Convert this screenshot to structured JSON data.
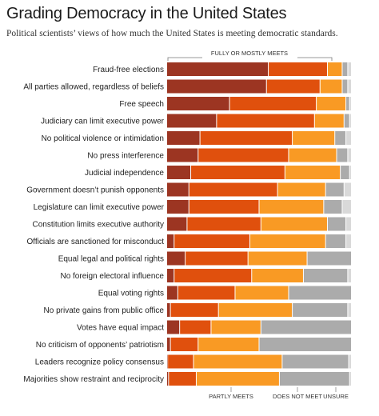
{
  "title": "Grading Democracy in the United States",
  "subtitle": "Political scientists’ views of how much the United States is meeting democratic standards.",
  "chart_data": {
    "type": "bar",
    "orientation": "horizontal",
    "stacked": true,
    "normalized": true,
    "header_label": "FULLY OR MOSTLY MEETS",
    "footer_labels": [
      "PARTLY MEETS",
      "DOES NOT MEET",
      "UNSURE"
    ],
    "colors": [
      "#9c3522",
      "#e0500d",
      "#f99a24",
      "#ababab",
      "#d9d9d9"
    ],
    "categories": [
      "Fraud-free elections",
      "All parties allowed, regardless of beliefs",
      "Free speech",
      "Judiciary can limit executive power",
      "No political violence or intimidation",
      "No press interference",
      "Judicial independence",
      "Government doesn’t punish opponents",
      "Legislature can limit executive power",
      "Constitution limits executive authority",
      "Officials are sanctioned for misconduct",
      "Equal legal and political rights",
      "No foreign electoral influence",
      "Equal voting rights",
      "No private gains from public office",
      "Votes have equal impact",
      "No criticism of opponents’ patriotism",
      "Leaders recognize policy consensus",
      "Majorities show restraint and reciprocity"
    ],
    "series": [
      {
        "values": [
          55,
          54,
          34,
          27,
          18,
          17,
          13,
          12,
          12,
          11,
          4,
          10,
          4,
          6,
          2,
          7,
          2,
          0.5,
          1
        ]
      },
      {
        "values": [
          32,
          29,
          47,
          53,
          50,
          49,
          51,
          48,
          38,
          40,
          41,
          34,
          42,
          31,
          26,
          17,
          15,
          14,
          15
        ]
      },
      {
        "values": [
          8,
          12,
          16,
          16,
          23,
          26,
          30,
          26,
          35,
          36,
          41,
          32,
          28,
          29,
          40,
          27,
          33,
          48,
          45
        ]
      },
      {
        "values": [
          3,
          3,
          2,
          3,
          6,
          6,
          5,
          10,
          10,
          10,
          11,
          24,
          24,
          34,
          30,
          49,
          50,
          36,
          38
        ]
      },
      {
        "values": [
          2,
          2,
          1,
          1,
          3,
          2,
          1,
          4,
          5,
          3,
          3,
          0,
          2,
          0,
          2,
          0,
          0,
          1.5,
          1
        ]
      }
    ]
  }
}
